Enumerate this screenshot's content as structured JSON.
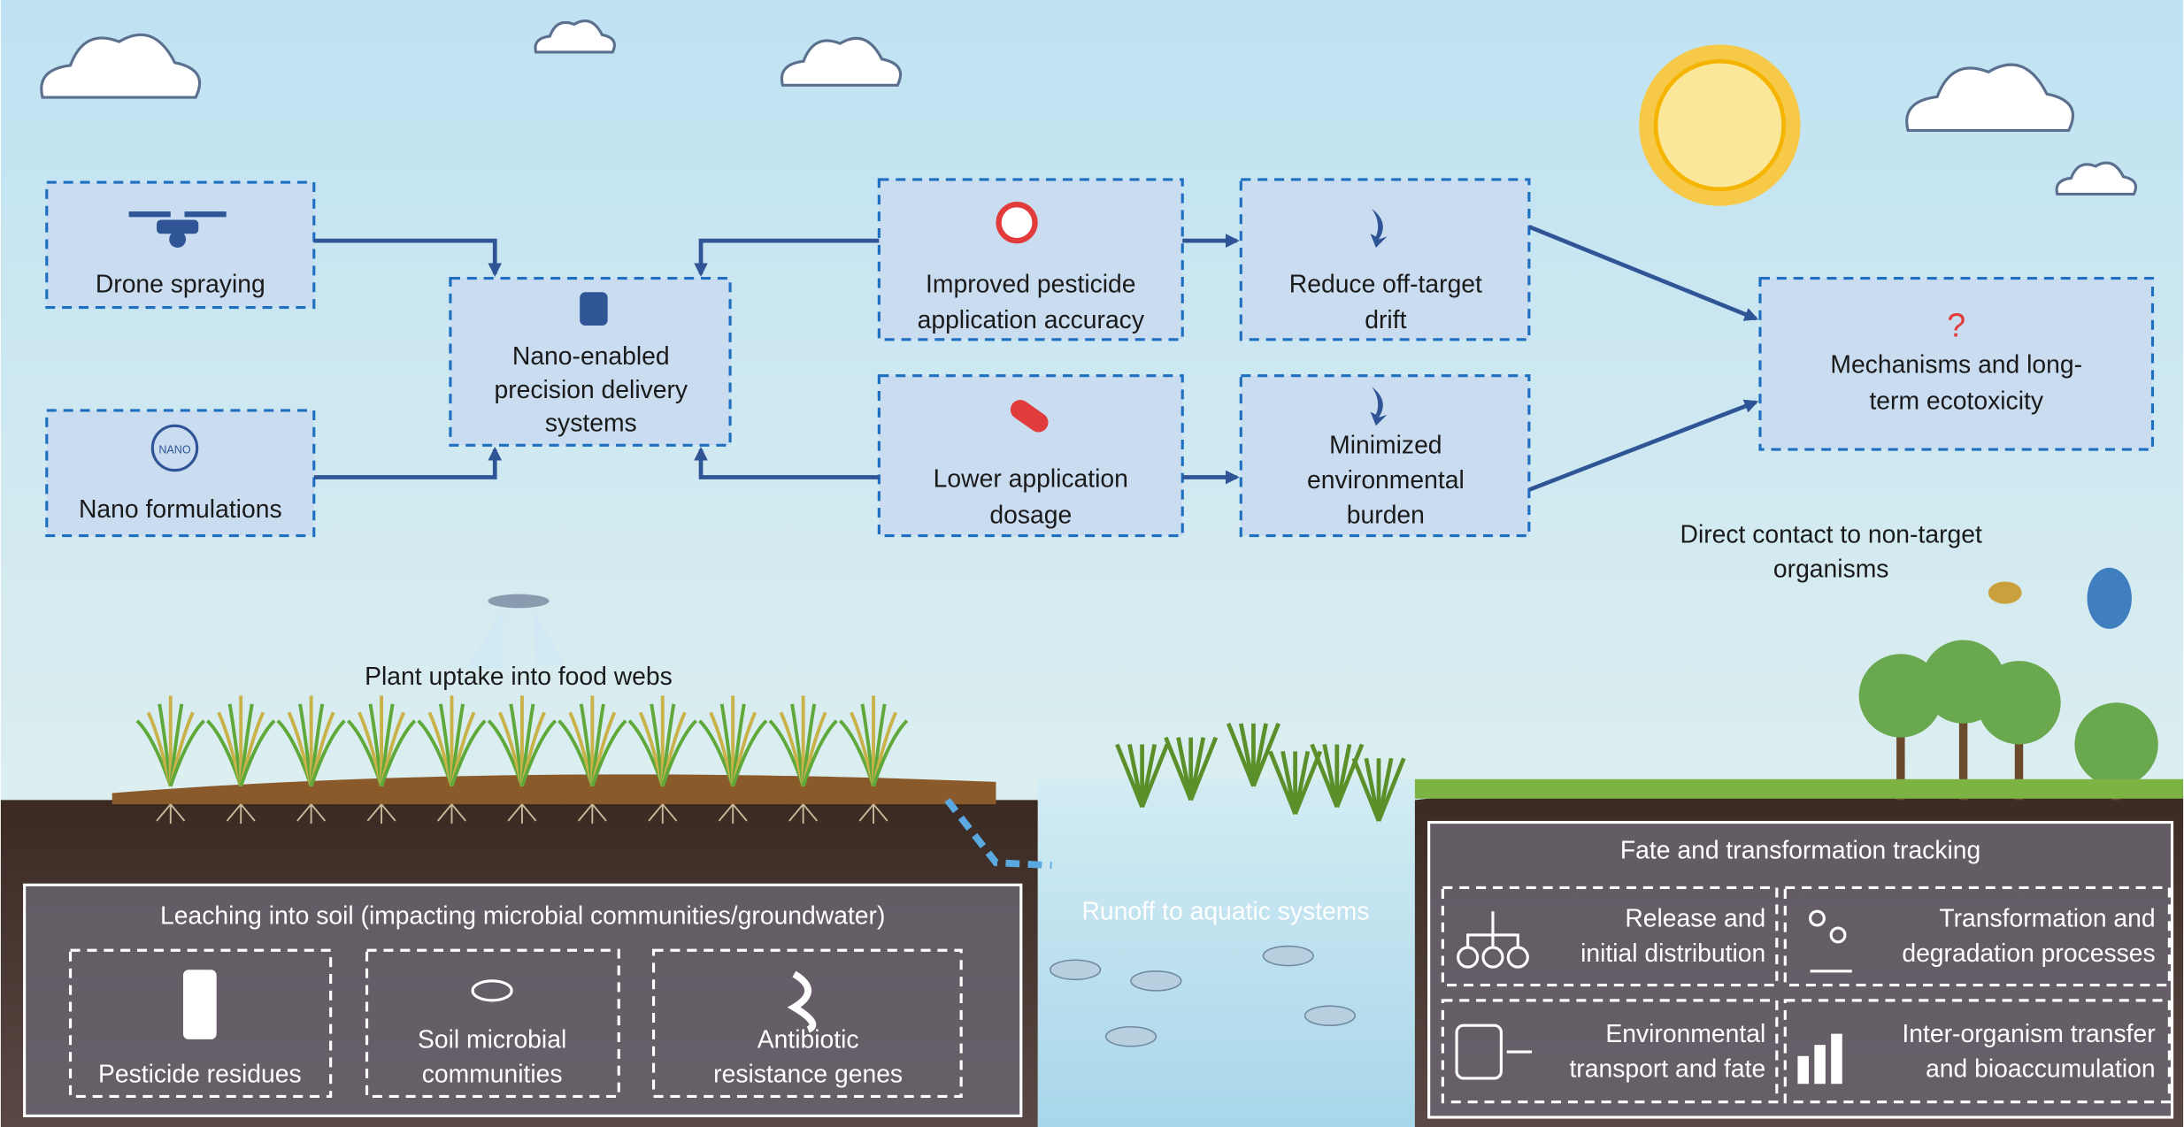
{
  "flow": {
    "nodes": [
      {
        "lines": [
          "Drone spraying"
        ]
      },
      {
        "icon_text": "NANO",
        "lines": [
          "Nano formulations"
        ]
      },
      {
        "lines": [
          "Nano-enabled",
          "precision delivery",
          "systems"
        ]
      },
      {
        "lines": [
          "Improved pesticide",
          "application accuracy"
        ]
      },
      {
        "lines": [
          "Lower application",
          "dosage"
        ]
      },
      {
        "lines": [
          "Reduce off-target",
          "drift"
        ]
      },
      {
        "lines": [
          "Minimized",
          "environmental",
          "burden"
        ]
      },
      {
        "icon_text": "?",
        "lines": [
          "Mechanisms and long-",
          "term ecotoxicity"
        ]
      }
    ]
  },
  "labels": {
    "direct_contact": [
      "Direct contact to non-target",
      "organisms"
    ],
    "plant_uptake": "Plant uptake into food webs",
    "runoff": "Runoff to aquatic systems"
  },
  "soil_panel": {
    "title": "Leaching into soil (impacting microbial communities/groundwater)",
    "items": [
      [
        "Pesticide residues"
      ],
      [
        "Soil microbial",
        "communities"
      ],
      [
        "Antibiotic",
        "resistance genes"
      ]
    ]
  },
  "fate_panel": {
    "title": "Fate and transformation tracking",
    "items": [
      [
        "Release and",
        "initial distribution"
      ],
      [
        "Transformation and",
        "degradation processes"
      ],
      [
        "Environmental",
        "transport and fate"
      ],
      [
        "Inter-organism transfer",
        "and bioaccumulation"
      ]
    ]
  }
}
